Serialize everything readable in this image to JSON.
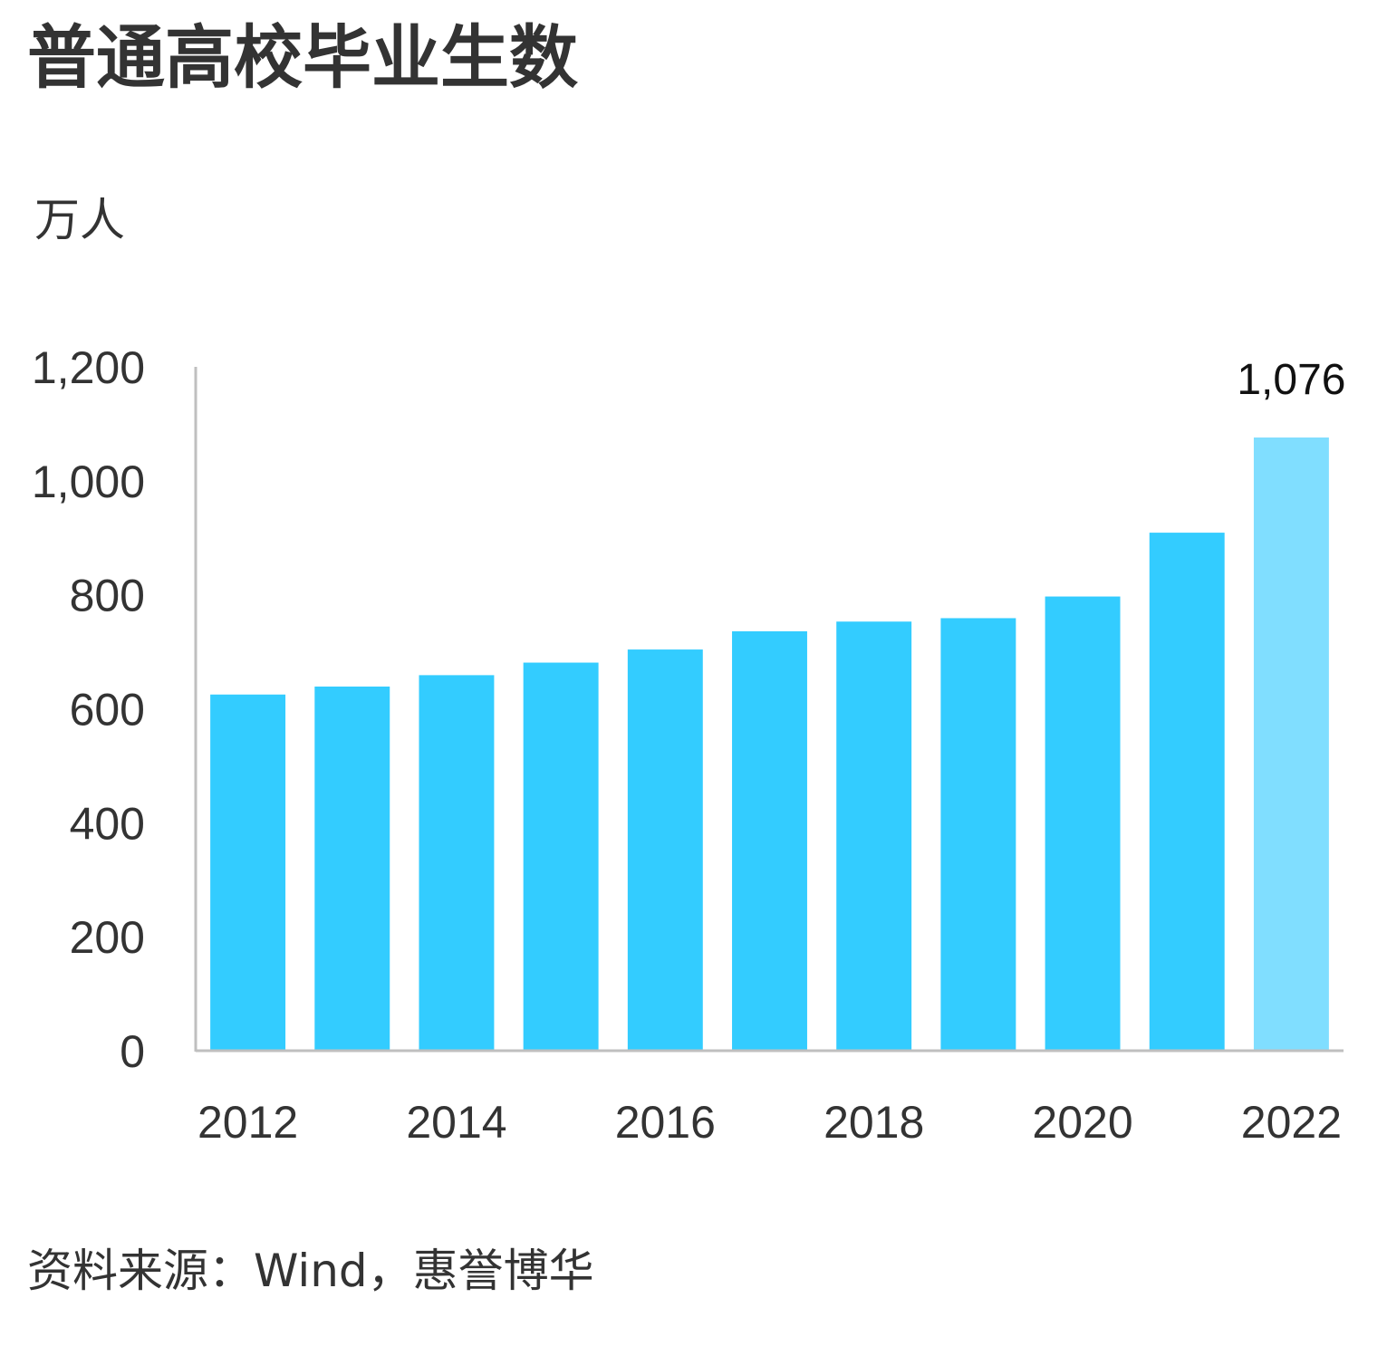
{
  "title": "普通高校毕业生数",
  "unit": "万人",
  "source": "资料来源：Wind，惠誉博华",
  "chart_data": {
    "type": "bar",
    "title": "普通高校毕业生数",
    "ylabel": "万人",
    "xlabel": "",
    "x": [
      2012,
      2013,
      2014,
      2015,
      2016,
      2017,
      2018,
      2019,
      2020,
      2021,
      2022
    ],
    "values": [
      625,
      639,
      659,
      681,
      704,
      736,
      753,
      759,
      797,
      909,
      1076
    ],
    "ylim": [
      0,
      1200
    ],
    "yticks": [
      0,
      200,
      400,
      600,
      800,
      1000,
      1200
    ],
    "ytick_labels": [
      "0",
      "200",
      "400",
      "600",
      "800",
      "1,000",
      "1,200"
    ],
    "xtick_labels": [
      "2012",
      "",
      "2014",
      "",
      "2016",
      "",
      "2018",
      "",
      "2020",
      "",
      "2022"
    ],
    "annotations": [
      {
        "index": 10,
        "label": "1,076"
      }
    ],
    "colors": {
      "bar": "#33ccff",
      "highlight": "#80deff",
      "axis": "#bfbfbf",
      "text": "#333333"
    },
    "grid": false,
    "legend": "none"
  }
}
